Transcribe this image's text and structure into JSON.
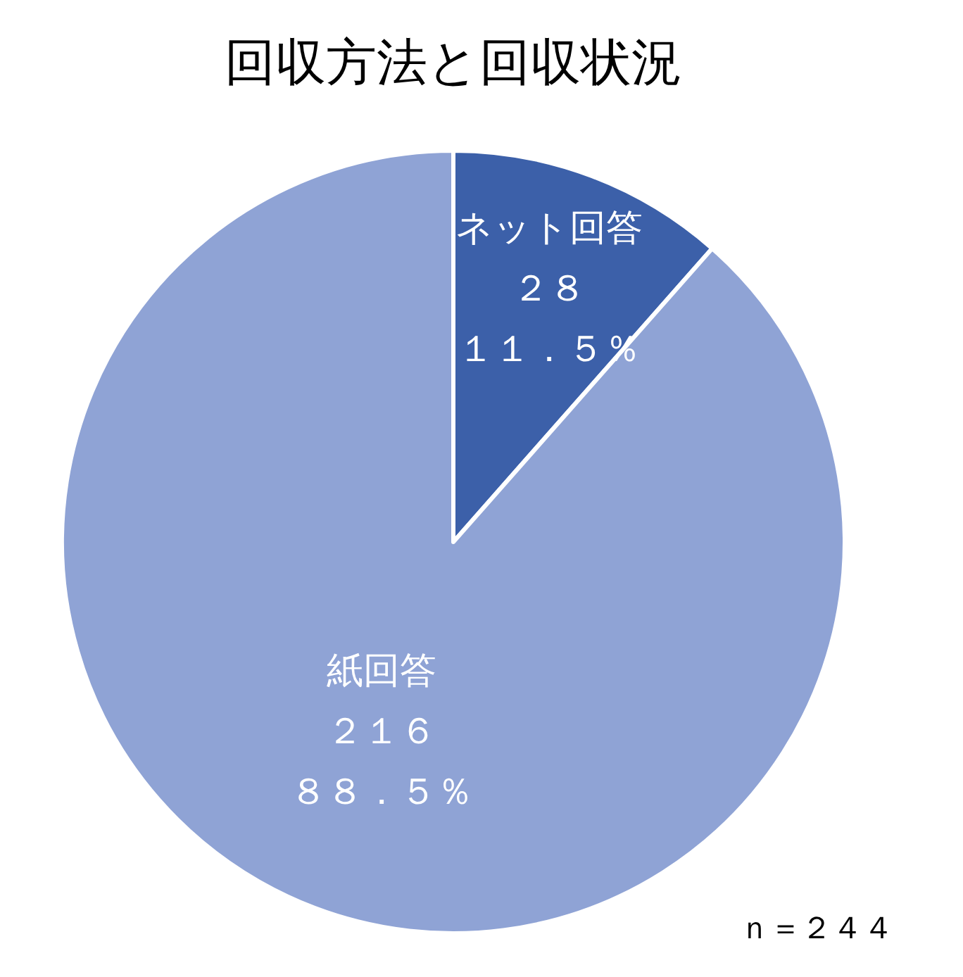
{
  "chart_data": {
    "type": "pie",
    "title": "回収方法と回収状況",
    "categories": [
      "ネット回答",
      "紙回答"
    ],
    "values": [
      11.5,
      88.5
    ],
    "colors": [
      "#3c60a9",
      "#8fa3d5"
    ],
    "value_labels": [
      [
        "２８",
        "１１．５％"
      ],
      [
        "２１６",
        "８８．５％"
      ]
    ],
    "annotations": [
      "ｎ＝２４４"
    ]
  }
}
